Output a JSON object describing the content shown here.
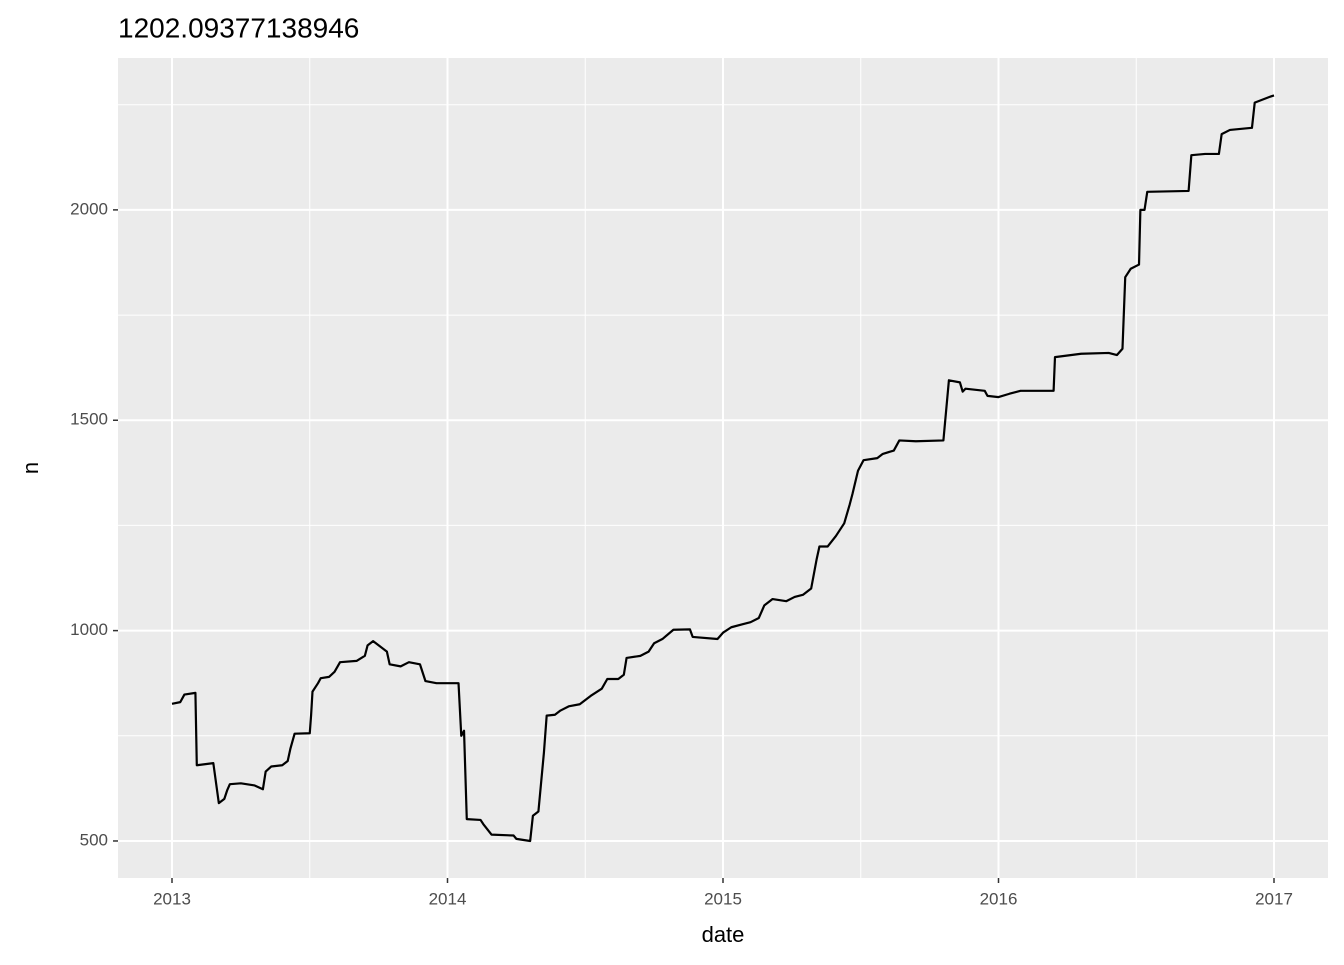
{
  "chart_data": {
    "type": "line",
    "title": "1202.09377138946",
    "x_label": "date",
    "y_label": "n",
    "x": [
      2013.0,
      2013.03,
      2013.045,
      2013.085,
      2013.09,
      2013.15,
      2013.17,
      2013.19,
      2013.2,
      2013.21,
      2013.25,
      2013.3,
      2013.33,
      2013.34,
      2013.36,
      2013.4,
      2013.42,
      2013.43,
      2013.445,
      2013.5,
      2013.505,
      2013.51,
      2013.53,
      2013.54,
      2013.57,
      2013.59,
      2013.61,
      2013.67,
      2013.7,
      2013.71,
      2013.73,
      2013.78,
      2013.79,
      2013.83,
      2013.86,
      2013.9,
      2013.92,
      2013.96,
      2014.04,
      2014.05,
      2014.06,
      2014.07,
      2014.12,
      2014.13,
      2014.16,
      2014.24,
      2014.25,
      2014.3,
      2014.31,
      2014.33,
      2014.35,
      2014.36,
      2014.39,
      2014.41,
      2014.44,
      2014.48,
      2014.52,
      2014.56,
      2014.58,
      2014.62,
      2014.64,
      2014.65,
      2014.7,
      2014.73,
      2014.75,
      2014.78,
      2014.82,
      2014.88,
      2014.89,
      2014.98,
      2015.0,
      2015.03,
      2015.07,
      2015.1,
      2015.13,
      2015.15,
      2015.18,
      2015.23,
      2015.26,
      2015.29,
      2015.32,
      2015.34,
      2015.35,
      2015.38,
      2015.41,
      2015.44,
      2015.46,
      2015.47,
      2015.49,
      2015.51,
      2015.56,
      2015.58,
      2015.62,
      2015.64,
      2015.7,
      2015.8,
      2015.82,
      2015.86,
      2015.87,
      2015.88,
      2015.95,
      2015.96,
      2016.0,
      2016.04,
      2016.08,
      2016.2,
      2016.205,
      2016.3,
      2016.4,
      2016.43,
      2016.45,
      2016.46,
      2016.48,
      2016.51,
      2016.515,
      2016.53,
      2016.54,
      2016.69,
      2016.7,
      2016.75,
      2016.8,
      2016.81,
      2016.84,
      2016.92,
      2016.93,
      2016.97,
      2016.99,
      2017.0
    ],
    "series": [
      {
        "color": "#000000",
        "values": [
          826,
          830,
          848,
          852,
          680,
          685,
          590,
          600,
          620,
          635,
          637,
          632,
          623,
          665,
          677,
          680,
          690,
          720,
          755,
          756,
          800,
          855,
          875,
          887,
          890,
          902,
          925,
          928,
          940,
          965,
          975,
          950,
          920,
          915,
          925,
          920,
          880,
          875,
          875,
          750,
          762,
          552,
          550,
          540,
          515,
          513,
          505,
          500,
          560,
          570,
          710,
          798,
          800,
          810,
          820,
          825,
          845,
          862,
          885,
          885,
          895,
          935,
          940,
          950,
          970,
          980,
          1002,
          1003,
          985,
          980,
          995,
          1008,
          1015,
          1020,
          1030,
          1060,
          1075,
          1070,
          1080,
          1085,
          1100,
          1170,
          1200,
          1200,
          1225,
          1255,
          1300,
          1325,
          1380,
          1405,
          1410,
          1420,
          1428,
          1452,
          1450,
          1452,
          1595,
          1590,
          1568,
          1575,
          1570,
          1558,
          1555,
          1563,
          1570,
          1570,
          1650,
          1658,
          1660,
          1655,
          1670,
          1840,
          1860,
          1870,
          2000,
          2000,
          2043,
          2045,
          2130,
          2133,
          2133,
          2180,
          2190,
          2195,
          2255,
          2265,
          2270,
          2272
        ]
      }
    ],
    "xlim": [
      2012.804,
      2017.196
    ],
    "xticks": [
      2013,
      2014,
      2015,
      2016,
      2017
    ],
    "ylim": [
      412,
      2361
    ],
    "yticks": [
      500,
      1000,
      1500,
      2000
    ],
    "grid": true
  }
}
